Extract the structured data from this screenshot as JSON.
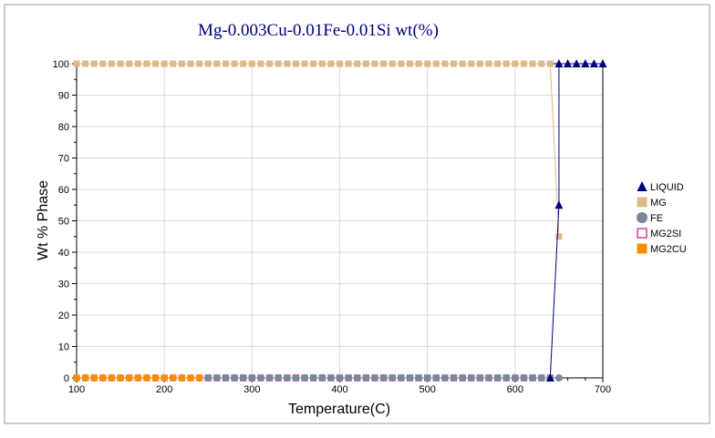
{
  "chart_data": {
    "type": "line",
    "title": "Mg-0.003Cu-0.01Fe-0.01Si wt(%)",
    "xlabel": "Temperature(C)",
    "ylabel": "Wt % Phase",
    "xlim": [
      100,
      700
    ],
    "ylim": [
      0,
      100
    ],
    "x_ticks": [
      "100",
      "200",
      "300",
      "400",
      "500",
      "600",
      "700"
    ],
    "y_ticks": [
      "0",
      "10",
      "20",
      "30",
      "40",
      "50",
      "60",
      "70",
      "80",
      "90",
      "100"
    ],
    "grid": true,
    "legend_position": "right",
    "series": [
      {
        "name": "LIQUID",
        "color": "#000080",
        "marker": "triangle",
        "points": [
          [
            640,
            0
          ],
          [
            650,
            55
          ],
          [
            650,
            100
          ],
          [
            660,
            100
          ],
          [
            670,
            100
          ],
          [
            680,
            100
          ],
          [
            690,
            100
          ],
          [
            700,
            100
          ]
        ]
      },
      {
        "name": "MG",
        "color": "#deb887",
        "marker": "square",
        "points": [
          [
            100,
            100
          ],
          [
            110,
            100
          ],
          [
            120,
            100
          ],
          [
            130,
            100
          ],
          [
            140,
            100
          ],
          [
            150,
            100
          ],
          [
            160,
            100
          ],
          [
            170,
            100
          ],
          [
            180,
            100
          ],
          [
            190,
            100
          ],
          [
            200,
            100
          ],
          [
            210,
            100
          ],
          [
            220,
            100
          ],
          [
            230,
            100
          ],
          [
            240,
            100
          ],
          [
            250,
            100
          ],
          [
            260,
            100
          ],
          [
            270,
            100
          ],
          [
            280,
            100
          ],
          [
            290,
            100
          ],
          [
            300,
            100
          ],
          [
            310,
            100
          ],
          [
            320,
            100
          ],
          [
            330,
            100
          ],
          [
            340,
            100
          ],
          [
            350,
            100
          ],
          [
            360,
            100
          ],
          [
            370,
            100
          ],
          [
            380,
            100
          ],
          [
            390,
            100
          ],
          [
            400,
            100
          ],
          [
            410,
            100
          ],
          [
            420,
            100
          ],
          [
            430,
            100
          ],
          [
            440,
            100
          ],
          [
            450,
            100
          ],
          [
            460,
            100
          ],
          [
            470,
            100
          ],
          [
            480,
            100
          ],
          [
            490,
            100
          ],
          [
            500,
            100
          ],
          [
            510,
            100
          ],
          [
            520,
            100
          ],
          [
            530,
            100
          ],
          [
            540,
            100
          ],
          [
            550,
            100
          ],
          [
            560,
            100
          ],
          [
            570,
            100
          ],
          [
            580,
            100
          ],
          [
            590,
            100
          ],
          [
            600,
            100
          ],
          [
            610,
            100
          ],
          [
            620,
            100
          ],
          [
            630,
            100
          ],
          [
            640,
            100
          ],
          [
            650,
            45
          ]
        ]
      },
      {
        "name": "FE",
        "color": "#778899",
        "marker": "circle",
        "points": [
          [
            100,
            0
          ],
          [
            110,
            0
          ],
          [
            120,
            0
          ],
          [
            130,
            0
          ],
          [
            140,
            0
          ],
          [
            150,
            0
          ],
          [
            160,
            0
          ],
          [
            170,
            0
          ],
          [
            180,
            0
          ],
          [
            190,
            0
          ],
          [
            200,
            0
          ],
          [
            210,
            0
          ],
          [
            220,
            0
          ],
          [
            230,
            0
          ],
          [
            240,
            0
          ],
          [
            250,
            0
          ],
          [
            260,
            0
          ],
          [
            270,
            0
          ],
          [
            280,
            0
          ],
          [
            290,
            0
          ],
          [
            300,
            0
          ],
          [
            310,
            0
          ],
          [
            320,
            0
          ],
          [
            330,
            0
          ],
          [
            340,
            0
          ],
          [
            350,
            0
          ],
          [
            360,
            0
          ],
          [
            370,
            0
          ],
          [
            380,
            0
          ],
          [
            390,
            0
          ],
          [
            400,
            0
          ],
          [
            410,
            0
          ],
          [
            420,
            0
          ],
          [
            430,
            0
          ],
          [
            440,
            0
          ],
          [
            450,
            0
          ],
          [
            460,
            0
          ],
          [
            470,
            0
          ],
          [
            480,
            0
          ],
          [
            490,
            0
          ],
          [
            500,
            0
          ],
          [
            510,
            0
          ],
          [
            520,
            0
          ],
          [
            530,
            0
          ],
          [
            540,
            0
          ],
          [
            550,
            0
          ],
          [
            560,
            0
          ],
          [
            570,
            0
          ],
          [
            580,
            0
          ],
          [
            590,
            0
          ],
          [
            600,
            0
          ],
          [
            610,
            0
          ],
          [
            620,
            0
          ],
          [
            630,
            0
          ],
          [
            640,
            0
          ],
          [
            650,
            0
          ]
        ]
      },
      {
        "name": "MG2SI",
        "color": "#c71585",
        "marker": "square-open",
        "points": [
          [
            100,
            0
          ],
          [
            110,
            0
          ],
          [
            120,
            0
          ],
          [
            130,
            0
          ],
          [
            140,
            0
          ],
          [
            150,
            0
          ],
          [
            160,
            0
          ],
          [
            170,
            0
          ],
          [
            180,
            0
          ],
          [
            190,
            0
          ],
          [
            200,
            0
          ],
          [
            210,
            0
          ],
          [
            220,
            0
          ],
          [
            230,
            0
          ],
          [
            240,
            0
          ],
          [
            250,
            0
          ],
          [
            260,
            0
          ],
          [
            270,
            0
          ],
          [
            280,
            0
          ],
          [
            290,
            0
          ],
          [
            300,
            0
          ],
          [
            310,
            0
          ],
          [
            320,
            0
          ],
          [
            330,
            0
          ],
          [
            340,
            0
          ],
          [
            350,
            0
          ],
          [
            360,
            0
          ],
          [
            370,
            0
          ],
          [
            380,
            0
          ],
          [
            390,
            0
          ],
          [
            400,
            0
          ],
          [
            410,
            0
          ],
          [
            420,
            0
          ],
          [
            430,
            0
          ],
          [
            440,
            0
          ],
          [
            450,
            0
          ],
          [
            460,
            0
          ],
          [
            470,
            0
          ],
          [
            480,
            0
          ],
          [
            490,
            0
          ],
          [
            500,
            0
          ],
          [
            510,
            0
          ],
          [
            520,
            0
          ],
          [
            530,
            0
          ],
          [
            540,
            0
          ],
          [
            550,
            0
          ],
          [
            560,
            0
          ],
          [
            570,
            0
          ],
          [
            580,
            0
          ],
          [
            590,
            0
          ],
          [
            600,
            0
          ],
          [
            610,
            0
          ],
          [
            620,
            0
          ],
          [
            630,
            0
          ],
          [
            640,
            0
          ]
        ]
      },
      {
        "name": "MG2CU",
        "color": "#ff8c00",
        "marker": "square",
        "points": [
          [
            100,
            0
          ],
          [
            110,
            0
          ],
          [
            120,
            0
          ],
          [
            130,
            0
          ],
          [
            140,
            0
          ],
          [
            150,
            0
          ],
          [
            160,
            0
          ],
          [
            170,
            0
          ],
          [
            180,
            0
          ],
          [
            190,
            0
          ],
          [
            200,
            0
          ],
          [
            210,
            0
          ],
          [
            220,
            0
          ],
          [
            230,
            0
          ],
          [
            240,
            0
          ]
        ]
      }
    ]
  }
}
